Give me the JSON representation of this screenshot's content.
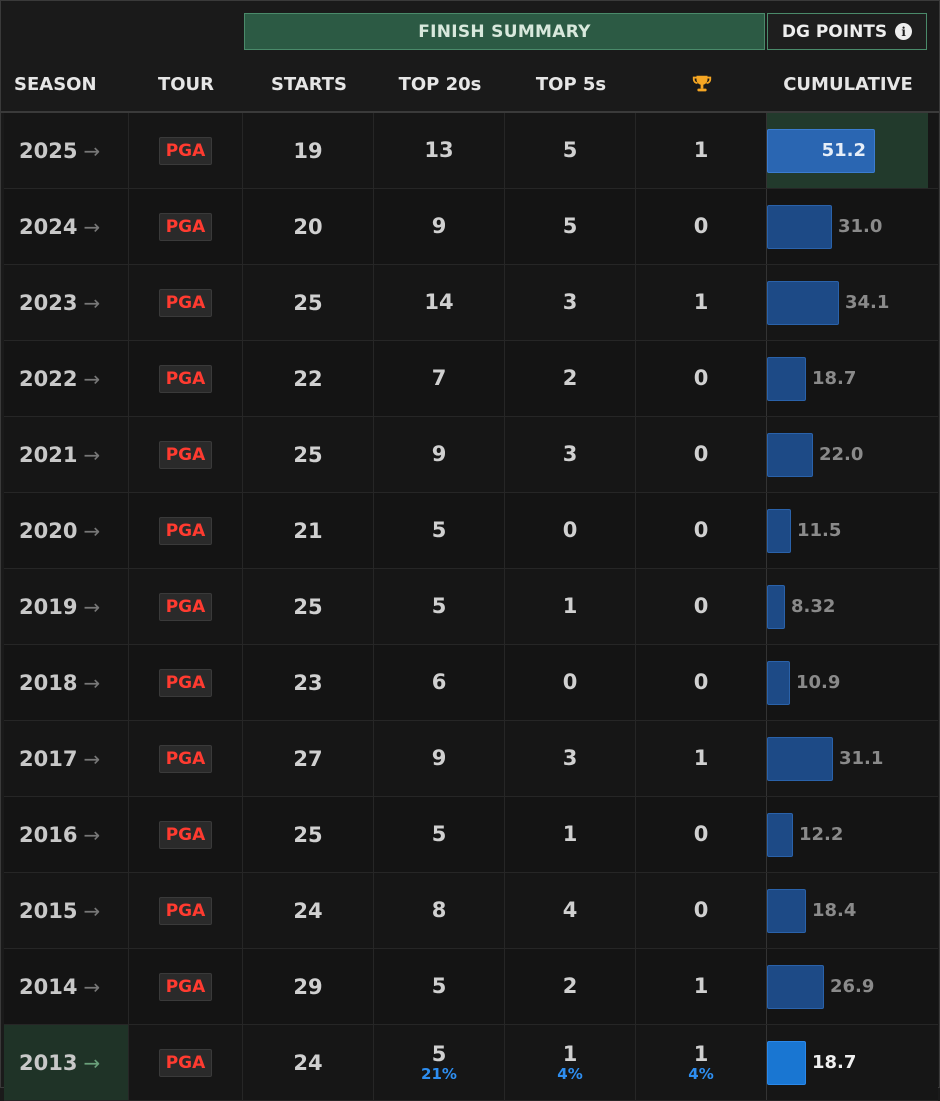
{
  "header": {
    "finish_summary": "FINISH SUMMARY",
    "dg_points": "DG POINTS",
    "info_glyph": "i",
    "columns": {
      "season": "SEASON",
      "tour": "TOUR",
      "starts": "STARTS",
      "top20": "TOP 20s",
      "top5": "TOP 5s",
      "wins_icon": "trophy-icon",
      "cumulative": "CUMULATIVE"
    }
  },
  "colors": {
    "trophy": "#f5a623",
    "tour_badge": "#ff3b30",
    "bar": "#1d4a86",
    "pct": "#2e8ef0"
  },
  "cumulative_max": 51.2,
  "rows": [
    {
      "season": "2025",
      "arrow": "→",
      "tour": "PGA",
      "starts": "19",
      "top20": "13",
      "top5": "5",
      "wins": "1",
      "cumulative": "51.2",
      "cum_value": 51.2
    },
    {
      "season": "2024",
      "arrow": "→",
      "tour": "PGA",
      "starts": "20",
      "top20": "9",
      "top5": "5",
      "wins": "0",
      "cumulative": "31.0",
      "cum_value": 31.0
    },
    {
      "season": "2023",
      "arrow": "→",
      "tour": "PGA",
      "starts": "25",
      "top20": "14",
      "top5": "3",
      "wins": "1",
      "cumulative": "34.1",
      "cum_value": 34.1
    },
    {
      "season": "2022",
      "arrow": "→",
      "tour": "PGA",
      "starts": "22",
      "top20": "7",
      "top5": "2",
      "wins": "0",
      "cumulative": "18.7",
      "cum_value": 18.7
    },
    {
      "season": "2021",
      "arrow": "→",
      "tour": "PGA",
      "starts": "25",
      "top20": "9",
      "top5": "3",
      "wins": "0",
      "cumulative": "22.0",
      "cum_value": 22.0
    },
    {
      "season": "2020",
      "arrow": "→",
      "tour": "PGA",
      "starts": "21",
      "top20": "5",
      "top5": "0",
      "wins": "0",
      "cumulative": "11.5",
      "cum_value": 11.5
    },
    {
      "season": "2019",
      "arrow": "→",
      "tour": "PGA",
      "starts": "25",
      "top20": "5",
      "top5": "1",
      "wins": "0",
      "cumulative": "8.32",
      "cum_value": 8.32
    },
    {
      "season": "2018",
      "arrow": "→",
      "tour": "PGA",
      "starts": "23",
      "top20": "6",
      "top5": "0",
      "wins": "0",
      "cumulative": "10.9",
      "cum_value": 10.9
    },
    {
      "season": "2017",
      "arrow": "→",
      "tour": "PGA",
      "starts": "27",
      "top20": "9",
      "top5": "3",
      "wins": "1",
      "cumulative": "31.1",
      "cum_value": 31.1
    },
    {
      "season": "2016",
      "arrow": "→",
      "tour": "PGA",
      "starts": "25",
      "top20": "5",
      "top5": "1",
      "wins": "0",
      "cumulative": "12.2",
      "cum_value": 12.2
    },
    {
      "season": "2015",
      "arrow": "→",
      "tour": "PGA",
      "starts": "24",
      "top20": "8",
      "top5": "4",
      "wins": "0",
      "cumulative": "18.4",
      "cum_value": 18.4
    },
    {
      "season": "2014",
      "arrow": "→",
      "tour": "PGA",
      "starts": "29",
      "top20": "5",
      "top5": "2",
      "wins": "1",
      "cumulative": "26.9",
      "cum_value": 26.9
    },
    {
      "season": "2013",
      "arrow": "→",
      "tour": "PGA",
      "starts": "24",
      "top20": "5",
      "top5": "1",
      "wins": "1",
      "cumulative": "18.7",
      "cum_value": 18.7,
      "top20_pct": "21%",
      "top5_pct": "4%",
      "wins_pct": "4%"
    }
  ]
}
